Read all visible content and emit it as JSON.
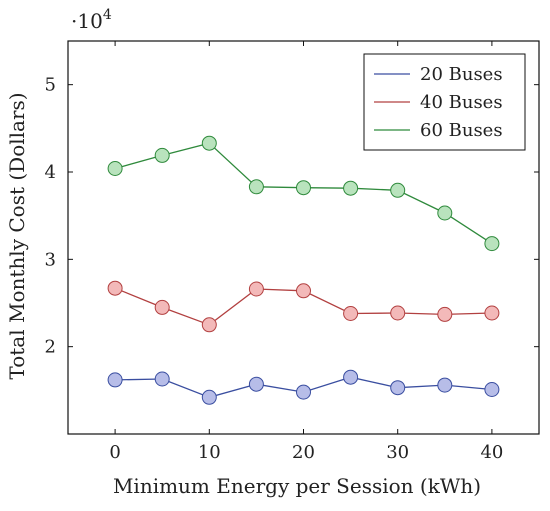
{
  "chart_data": {
    "type": "line",
    "title": "",
    "xlabel": "Minimum Energy per Session (kWh)",
    "ylabel": "Total Monthly Cost (Dollars)",
    "y_multiplier_label": "·10",
    "y_multiplier_exponent": "4",
    "x": [
      0,
      5,
      10,
      15,
      20,
      25,
      30,
      35,
      40
    ],
    "xlim": [
      -5,
      45
    ],
    "ylim": [
      10000,
      55000
    ],
    "x_ticks": [
      0,
      10,
      20,
      30,
      40
    ],
    "x_tick_labels": [
      "0",
      "10",
      "20",
      "30",
      "40"
    ],
    "y_ticks": [
      20000,
      30000,
      40000,
      50000
    ],
    "y_tick_labels": [
      "2",
      "3",
      "4",
      "5"
    ],
    "grid": false,
    "legend_position": "top-right",
    "series": [
      {
        "name": "20 Buses",
        "color": "#3a4ea0",
        "fill": "#b7bde8",
        "values": [
          16200,
          16300,
          14200,
          15700,
          14800,
          16500,
          15300,
          15600,
          15100
        ]
      },
      {
        "name": "40 Buses",
        "color": "#b24040",
        "fill": "#f3b9b9",
        "values": [
          26700,
          24500,
          22500,
          26600,
          26400,
          23800,
          23850,
          23700,
          23850
        ]
      },
      {
        "name": "60 Buses",
        "color": "#2f8a3c",
        "fill": "#b9e3bd",
        "values": [
          40400,
          41900,
          43300,
          38300,
          38200,
          38150,
          37900,
          35300,
          31800
        ]
      }
    ]
  }
}
